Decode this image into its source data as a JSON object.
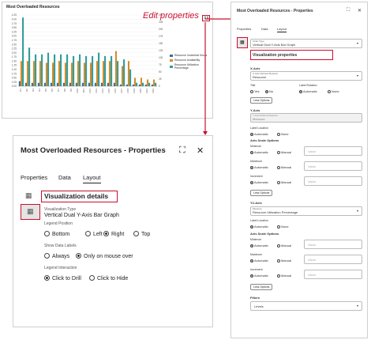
{
  "chart": {
    "title": "Most Overloaded Resources",
    "edit_label": "Edit properties",
    "legend": [
      {
        "name": "Resource Incidental Hours",
        "color": "#3f6b9c"
      },
      {
        "name": "Resource Availability",
        "color": "#d58b2a"
      },
      {
        "name": "Resource Utilization Percentage",
        "color": "#2e9c98"
      }
    ]
  },
  "chart_data": {
    "type": "bar",
    "title": "Most Overloaded Resources",
    "categories": [
      "R1",
      "R2",
      "R3",
      "R4",
      "R5",
      "R6",
      "R7",
      "R8",
      "R9",
      "R10",
      "R11",
      "R12",
      "R13",
      "R14",
      "R15",
      "R16",
      "R17",
      "R18",
      "R19",
      "R20",
      "R21",
      "R22"
    ],
    "ylim_left": [
      0,
      4.25
    ],
    "ylim_right": [
      0,
      250
    ],
    "yticks_left": [
      "4.25",
      "4.00",
      "3.75",
      "3.50",
      "3.25",
      "3.00",
      "2.75",
      "2.50",
      "2.25",
      "2.00",
      "1.75",
      "1.50",
      "1.25",
      "1.00",
      "0.75",
      "0.50",
      "0.25",
      "0.00"
    ],
    "yticks_right": [
      "250",
      "225",
      "200",
      "175",
      "150",
      "125",
      "100",
      "75",
      "50",
      "25",
      "0"
    ],
    "series": [
      {
        "name": "Resource Incidental Hours",
        "values": [
          0.3,
          0.2,
          0.2,
          0.2,
          0.2,
          0.2,
          0.2,
          0.2,
          0.2,
          0.2,
          0.2,
          0.2,
          0.2,
          0.2,
          0.2,
          0.2,
          0.1,
          0.1,
          0.1,
          0.1,
          0.1,
          0.1
        ]
      },
      {
        "name": "Resource Availability",
        "values": [
          1.5,
          1.5,
          1.5,
          1.5,
          1.4,
          1.4,
          1.5,
          1.4,
          1.4,
          1.5,
          1.4,
          1.4,
          1.5,
          1.5,
          1.5,
          2.1,
          1.2,
          1.5,
          0.5,
          0.5,
          0.4,
          0.4
        ]
      },
      {
        "name": "Resource Utilization Percentage",
        "values": [
          4.1,
          2.3,
          1.9,
          1.9,
          2.0,
          1.9,
          1.9,
          1.9,
          1.8,
          1.9,
          1.8,
          1.8,
          2.0,
          1.8,
          1.8,
          1.5,
          1.6,
          1.0,
          0.2,
          0.2,
          0.2,
          0.2
        ]
      }
    ]
  },
  "right_panel": {
    "title": "Most Overloaded Resources - Properties",
    "tabs": [
      "Properties",
      "Data",
      "Layout"
    ],
    "chart_type_label": "Chart Type",
    "chart_type_value": "Vertical Dual Y-Axis Bar Graph",
    "viz_header": "Visualization properties",
    "xaxis_header": "X-Axis",
    "xaxis_field_label": "X-Axis Defined Measure",
    "xaxis_field_value": "Resource",
    "title_label": "Title",
    "title_yes": "Yes",
    "title_no": "No",
    "label_rotation": "Label Rotation",
    "automatic": "Automatic",
    "none": "None",
    "less_options": "Less Options",
    "yaxis_header": "Y-Axis",
    "yaxis_field_label": "Y-Axis Defined Measure",
    "yaxis_field_value": "Measure",
    "label_location": "Label Location",
    "axis_scale": "Axis Scale Options",
    "minimum": "Minimum",
    "maximum": "Maximum",
    "increment": "Increment",
    "manual": "Manual",
    "value_ph": "Value",
    "y2_header": "Y2-Axis",
    "y2_field_label": "Measure",
    "y2_field_value": "Resource Utilization Percentage",
    "filters": "Filters",
    "filter_value": "Levels"
  },
  "zoom": {
    "title": "Most Overloaded Resources - Properties",
    "tabs": [
      "Properties",
      "Data",
      "Layout"
    ],
    "viz_details": "Visualization details",
    "viz_type_label": "Visualization Type",
    "viz_type_value": "Vertical Dual Y-Axis Bar Graph",
    "legend_position": "Legend Position",
    "positions": [
      "Bottom",
      "Left",
      "Right",
      "Top"
    ],
    "show_labels": "Show Data Labels",
    "label_opts": [
      "Always",
      "Only on mouse over"
    ],
    "legend_interaction": "Legend Interaction",
    "interaction_opts": [
      "Click to Drill",
      "Click to Hide"
    ]
  }
}
